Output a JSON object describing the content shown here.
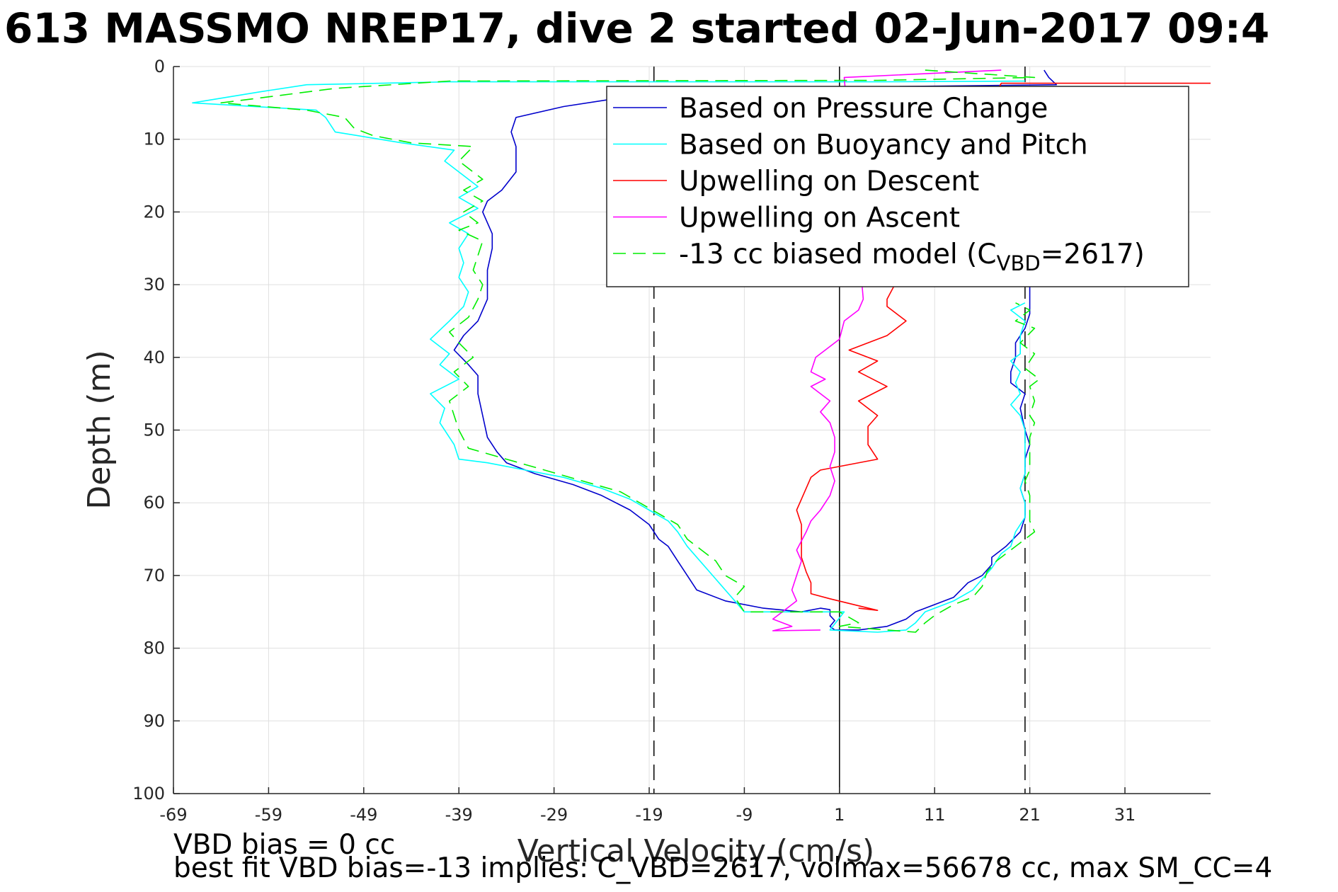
{
  "chart_data": {
    "type": "line",
    "title": "613 MASSMO NREP17, dive 2 started 02-Jun-2017 09:4",
    "xlabel": "Vertical Velocity (cm/s)",
    "ylabel": "Depth (m)",
    "xlim": [
      -69,
      40
    ],
    "ylim": [
      0,
      100
    ],
    "y_reversed": true,
    "xticks": [
      -69,
      -59,
      -49,
      -39,
      -29,
      -19,
      -9,
      1,
      11,
      21,
      31
    ],
    "yticks": [
      0,
      10,
      20,
      30,
      40,
      50,
      60,
      70,
      80,
      90,
      100
    ],
    "grid": true,
    "legend_position": "top-right",
    "vlines": [
      {
        "x": 1,
        "style": "solid"
      },
      {
        "x": -18.5,
        "style": "dashed"
      },
      {
        "x": 20.5,
        "style": "dashed"
      }
    ],
    "series": [
      {
        "name": "Based on Pressure Change",
        "color": "#0000cc",
        "style": "solid",
        "points": [
          [
            22.5,
            0.5
          ],
          [
            23,
            1.5
          ],
          [
            23.8,
            2.5
          ],
          [
            3,
            2.8
          ],
          [
            -17,
            3.2
          ],
          [
            -23,
            4.5
          ],
          [
            -28,
            5.5
          ],
          [
            -33,
            7
          ],
          [
            -33.5,
            9
          ],
          [
            -33,
            11
          ],
          [
            -33,
            14.5
          ],
          [
            -34.5,
            17
          ],
          [
            -36,
            18.5
          ],
          [
            -36.5,
            20
          ],
          [
            -35.5,
            23
          ],
          [
            -35.5,
            25
          ],
          [
            -36,
            28
          ],
          [
            -36,
            32
          ],
          [
            -37,
            35
          ],
          [
            -38.5,
            37
          ],
          [
            -39.5,
            39
          ],
          [
            -38,
            41
          ],
          [
            -37,
            42.5
          ],
          [
            -37,
            45
          ],
          [
            -36.5,
            48
          ],
          [
            -36,
            51
          ],
          [
            -35,
            53
          ],
          [
            -34,
            54.5
          ],
          [
            -31,
            56
          ],
          [
            -27,
            57.5
          ],
          [
            -24,
            59
          ],
          [
            -21,
            61
          ],
          [
            -19,
            63
          ],
          [
            -18,
            65
          ],
          [
            -17,
            66
          ],
          [
            -16,
            68
          ],
          [
            -15,
            70
          ],
          [
            -14,
            72
          ],
          [
            -11,
            73.5
          ],
          [
            -7,
            74.5
          ],
          [
            -3,
            75
          ],
          [
            -1,
            74.5
          ],
          [
            0,
            74.7
          ],
          [
            0,
            75.5
          ],
          [
            0.5,
            76.2
          ],
          [
            0,
            77
          ],
          [
            0.5,
            77.5
          ],
          [
            3,
            77.5
          ],
          [
            6,
            77
          ],
          [
            8,
            76
          ],
          [
            9,
            75
          ],
          [
            11,
            74
          ],
          [
            13,
            73
          ],
          [
            14.5,
            71
          ],
          [
            16,
            70
          ],
          [
            17,
            68.5
          ],
          [
            17,
            67.5
          ],
          [
            18.5,
            66
          ],
          [
            20,
            64
          ],
          [
            20.5,
            62
          ],
          [
            20.5,
            60
          ],
          [
            20,
            58
          ],
          [
            20.5,
            56
          ],
          [
            20.5,
            54
          ],
          [
            21,
            52
          ],
          [
            20.5,
            50
          ],
          [
            20,
            47
          ],
          [
            20.5,
            45
          ],
          [
            19,
            43.5
          ],
          [
            19,
            42
          ],
          [
            19.5,
            40
          ],
          [
            19.5,
            38
          ],
          [
            20.5,
            36
          ],
          [
            21,
            34
          ],
          [
            21,
            32
          ],
          [
            21,
            30
          ],
          [
            21,
            28
          ],
          [
            21,
            26
          ],
          [
            21,
            24
          ],
          [
            21,
            22
          ]
        ]
      },
      {
        "name": "Based on Buoyancy and Pitch",
        "color": "#00ffff",
        "style": "solid",
        "points": [
          [
            20.5,
            2
          ],
          [
            5,
            2.1
          ],
          [
            -40,
            2.1
          ],
          [
            -55,
            2.5
          ],
          [
            -60,
            3.5
          ],
          [
            -67,
            5
          ],
          [
            -54,
            6
          ],
          [
            -53,
            7
          ],
          [
            -52,
            9
          ],
          [
            -45,
            10.5
          ],
          [
            -39.5,
            11.5
          ],
          [
            -40.5,
            13
          ],
          [
            -39,
            14.5
          ],
          [
            -37,
            16.5
          ],
          [
            -39,
            18
          ],
          [
            -37,
            19.5
          ],
          [
            -40,
            21.5
          ],
          [
            -38,
            23
          ],
          [
            -39,
            25
          ],
          [
            -38.5,
            27
          ],
          [
            -39,
            29
          ],
          [
            -38,
            31
          ],
          [
            -38.5,
            33
          ],
          [
            -40,
            35
          ],
          [
            -42,
            37.5
          ],
          [
            -40,
            39.5
          ],
          [
            -41,
            41
          ],
          [
            -39,
            43
          ],
          [
            -42,
            45
          ],
          [
            -40.5,
            47
          ],
          [
            -41,
            49
          ],
          [
            -39.5,
            52
          ],
          [
            -39,
            54
          ],
          [
            -36,
            54.5
          ],
          [
            -32,
            55.5
          ],
          [
            -28,
            56.5
          ],
          [
            -24,
            58
          ],
          [
            -21,
            59.5
          ],
          [
            -19,
            61
          ],
          [
            -17,
            62.5
          ],
          [
            -16,
            64
          ],
          [
            -15,
            66
          ],
          [
            -14,
            67.5
          ],
          [
            -13,
            69
          ],
          [
            -12,
            70.5
          ],
          [
            -11,
            72
          ],
          [
            -10,
            73.5
          ],
          [
            -9,
            75
          ],
          [
            -2,
            75
          ],
          [
            1.5,
            75
          ],
          [
            0,
            77.5
          ],
          [
            5,
            77.8
          ],
          [
            8,
            77.5
          ],
          [
            9,
            76.5
          ],
          [
            10,
            75
          ],
          [
            12,
            74
          ],
          [
            13,
            73.5
          ],
          [
            15,
            72
          ],
          [
            16,
            70.5
          ],
          [
            17,
            69
          ],
          [
            18,
            67
          ],
          [
            19,
            66
          ],
          [
            19.5,
            64
          ],
          [
            20.5,
            62
          ],
          [
            20.5,
            60
          ],
          [
            20,
            58
          ],
          [
            20.5,
            56
          ],
          [
            20.5,
            54
          ],
          [
            20.5,
            52
          ],
          [
            20.5,
            50
          ],
          [
            20,
            48
          ],
          [
            19,
            46.5
          ],
          [
            20,
            45
          ],
          [
            19.5,
            43.5
          ],
          [
            20,
            42
          ],
          [
            19,
            40.5
          ],
          [
            20,
            39.5
          ],
          [
            20,
            37
          ],
          [
            20.5,
            35
          ],
          [
            19,
            33.5
          ],
          [
            20.5,
            32.5
          ]
        ]
      },
      {
        "name": "Upwelling on Descent",
        "color": "#ff0000",
        "style": "solid",
        "points": [
          [
            40,
            2.3
          ],
          [
            18,
            2.3
          ],
          [
            6,
            32
          ],
          [
            6,
            33
          ],
          [
            8,
            35
          ],
          [
            6,
            37
          ],
          [
            2,
            39
          ],
          [
            5,
            40.5
          ],
          [
            3,
            42
          ],
          [
            6,
            44
          ],
          [
            3,
            46
          ],
          [
            5,
            48
          ],
          [
            4,
            49.5
          ],
          [
            4,
            52
          ],
          [
            5,
            54
          ],
          [
            -1,
            55.5
          ],
          [
            -2,
            56.5
          ],
          [
            -2.5,
            58
          ],
          [
            -3,
            59.5
          ],
          [
            -3.5,
            61
          ],
          [
            -3,
            63
          ],
          [
            -3,
            65.5
          ],
          [
            -3,
            67.5
          ],
          [
            -2.5,
            69.5
          ],
          [
            -2,
            71
          ],
          [
            -2,
            72.5
          ],
          [
            0,
            73.2
          ],
          [
            5,
            74.8
          ],
          [
            3,
            74.5
          ]
        ]
      },
      {
        "name": "Upwelling on Ascent",
        "color": "#ff00ff",
        "style": "solid",
        "points": [
          [
            18,
            0.5
          ],
          [
            1.5,
            1.5
          ],
          [
            3.5,
            32
          ],
          [
            3,
            33.5
          ],
          [
            1.5,
            35
          ],
          [
            1,
            37.5
          ],
          [
            -0.5,
            39
          ],
          [
            -1.5,
            40
          ],
          [
            -2,
            42
          ],
          [
            -0.5,
            43
          ],
          [
            -2,
            44
          ],
          [
            0,
            46
          ],
          [
            -1,
            47.5
          ],
          [
            0,
            49
          ],
          [
            0.5,
            51
          ],
          [
            0.5,
            53
          ],
          [
            0,
            55
          ],
          [
            0.5,
            57
          ],
          [
            0,
            59
          ],
          [
            -1,
            61
          ],
          [
            -2,
            62.5
          ],
          [
            -2.5,
            64
          ],
          [
            -3.5,
            66.5
          ],
          [
            -3,
            68
          ],
          [
            -3.5,
            70
          ],
          [
            -4,
            72
          ],
          [
            -3.5,
            73.5
          ],
          [
            -5,
            75
          ],
          [
            -6,
            76
          ],
          [
            -4,
            77
          ],
          [
            -6,
            77.6
          ],
          [
            -1,
            77.5
          ]
        ]
      },
      {
        "name": "-13 cc biased model (C",
        "subscript": "VBD",
        "suffix": "=2617)",
        "color": "#00ee00",
        "style": "dashed",
        "points": [
          [
            10,
            0.5
          ],
          [
            21.5,
            1.5
          ],
          [
            5,
            1.9
          ],
          [
            -40,
            2
          ],
          [
            -52,
            3
          ],
          [
            -58,
            4
          ],
          [
            -64,
            5
          ],
          [
            -55,
            6
          ],
          [
            -51,
            7
          ],
          [
            -50,
            8.5
          ],
          [
            -48,
            9.5
          ],
          [
            -44,
            10.5
          ],
          [
            -37.5,
            11
          ],
          [
            -39,
            13
          ],
          [
            -36.5,
            15.5
          ],
          [
            -38.5,
            17
          ],
          [
            -36.5,
            18.5
          ],
          [
            -38.5,
            20
          ],
          [
            -37,
            21.5
          ],
          [
            -39,
            22.5
          ],
          [
            -36.5,
            24
          ],
          [
            -37,
            26
          ],
          [
            -37.5,
            28
          ],
          [
            -36.5,
            30
          ],
          [
            -37,
            32
          ],
          [
            -38,
            34.5
          ],
          [
            -40,
            36.5
          ],
          [
            -39,
            38
          ],
          [
            -37.5,
            40
          ],
          [
            -39.5,
            42
          ],
          [
            -38,
            44
          ],
          [
            -40,
            46
          ],
          [
            -39.5,
            48
          ],
          [
            -39,
            50
          ],
          [
            -38,
            52.5
          ],
          [
            -34,
            54
          ],
          [
            -30,
            55.5
          ],
          [
            -26,
            57
          ],
          [
            -22,
            58.5
          ],
          [
            -20,
            60
          ],
          [
            -18,
            61.5
          ],
          [
            -16,
            63
          ],
          [
            -15,
            65
          ],
          [
            -13.5,
            66.5
          ],
          [
            -12,
            68
          ],
          [
            -11,
            70
          ],
          [
            -9,
            71.5
          ],
          [
            -10,
            73
          ],
          [
            -9,
            75
          ],
          [
            -4,
            75
          ],
          [
            1,
            75
          ],
          [
            3,
            76.5
          ],
          [
            1,
            77
          ],
          [
            9,
            77.8
          ],
          [
            10,
            76.5
          ],
          [
            11,
            75.5
          ],
          [
            13,
            74
          ],
          [
            15,
            73
          ],
          [
            16,
            71.5
          ],
          [
            16.5,
            69.5
          ],
          [
            17.5,
            68
          ],
          [
            18.5,
            67
          ],
          [
            20,
            65.5
          ],
          [
            21.5,
            64
          ],
          [
            21,
            62.5
          ],
          [
            21,
            61
          ],
          [
            21,
            59
          ],
          [
            20.5,
            57
          ],
          [
            21,
            55.5
          ],
          [
            21,
            53
          ],
          [
            21,
            51
          ],
          [
            21.5,
            49
          ],
          [
            21,
            48
          ],
          [
            21.5,
            46
          ],
          [
            21,
            44
          ],
          [
            22,
            43
          ],
          [
            20.5,
            41.5
          ],
          [
            21.5,
            39.5
          ],
          [
            20,
            38
          ],
          [
            21.5,
            36
          ],
          [
            19.5,
            35
          ],
          [
            21,
            33.5
          ],
          [
            19.5,
            32.5
          ]
        ]
      }
    ]
  },
  "footer": {
    "line1": "VBD bias = 0 cc",
    "line2": "best fit VBD bias=-13 implies: C_VBD=2617, volmax=56678 cc, max SM_CC=4"
  }
}
